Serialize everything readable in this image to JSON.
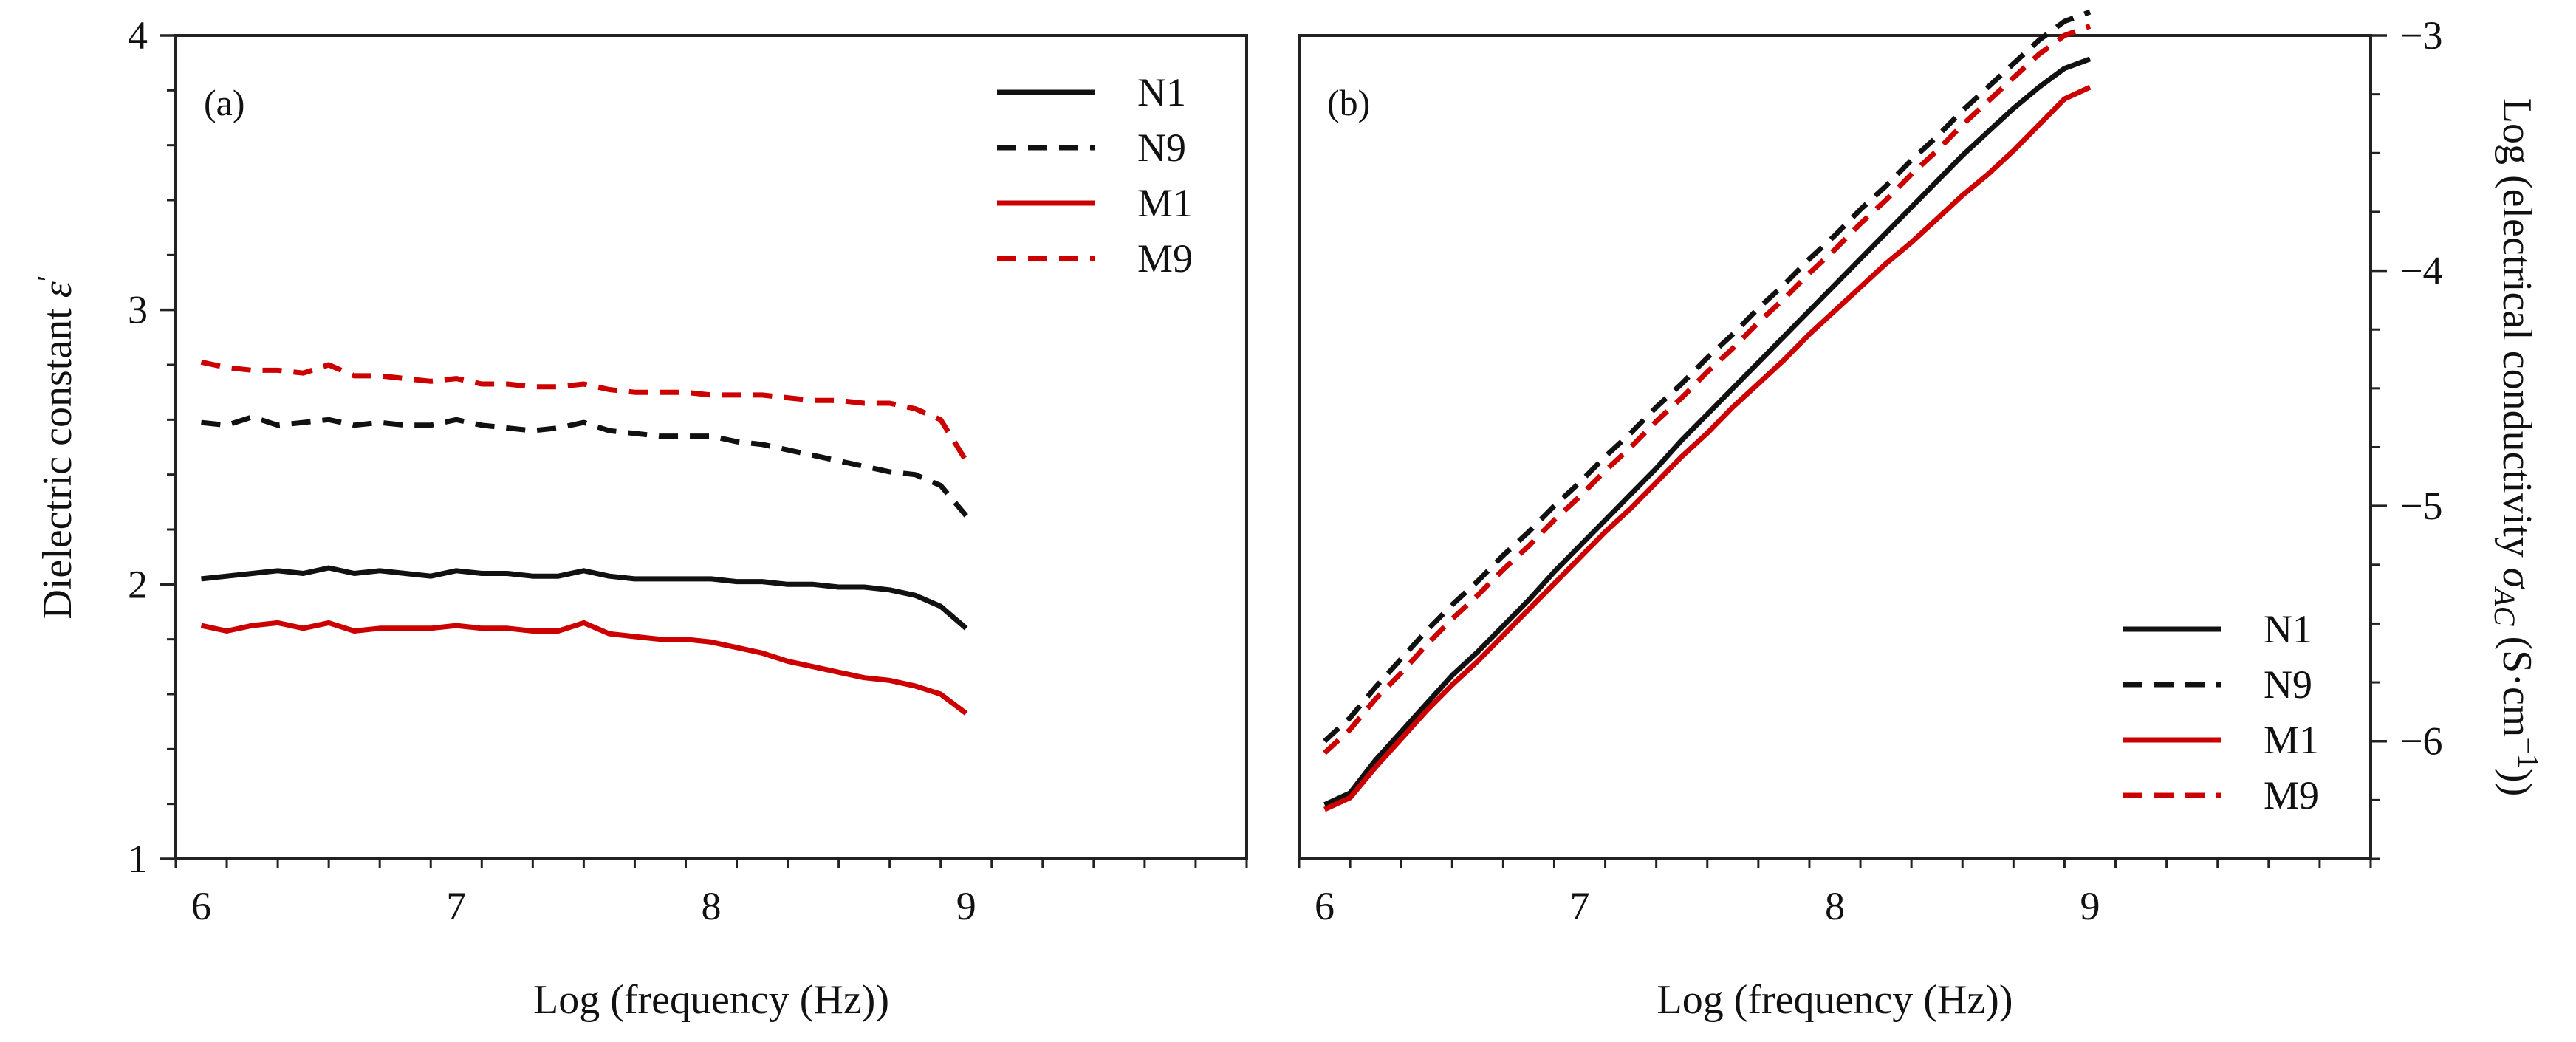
{
  "colors": {
    "black": "#111111",
    "red": "#cc0000"
  },
  "chart_data": [
    {
      "type": "line",
      "panel": "(a)",
      "xlabel": "Log (frequency (Hz))",
      "ylabel": "Dielectric constant",
      "ylabel_symbol": "ε",
      "ylabel_prime": "′",
      "xlim": [
        5.9,
        10.1
      ],
      "ylim": [
        1,
        4
      ],
      "xticks": [
        6,
        7,
        8,
        9
      ],
      "xticklabels": [
        "6",
        "7",
        "8",
        "9"
      ],
      "yticks": [
        1,
        2,
        3,
        4
      ],
      "yticklabels": [
        "1",
        "2",
        "3",
        "4"
      ],
      "legend_position": "top-right",
      "x": [
        6.0,
        6.1,
        6.2,
        6.3,
        6.4,
        6.5,
        6.6,
        6.7,
        6.8,
        6.9,
        7.0,
        7.1,
        7.2,
        7.3,
        7.4,
        7.5,
        7.6,
        7.7,
        7.8,
        7.9,
        8.0,
        8.1,
        8.2,
        8.3,
        8.4,
        8.5,
        8.6,
        8.7,
        8.8,
        8.9,
        9.0
      ],
      "series": [
        {
          "name": "N1",
          "color": "black",
          "dash": "solid",
          "values": [
            2.02,
            2.03,
            2.04,
            2.05,
            2.04,
            2.06,
            2.04,
            2.05,
            2.04,
            2.03,
            2.05,
            2.04,
            2.04,
            2.03,
            2.03,
            2.05,
            2.03,
            2.02,
            2.02,
            2.02,
            2.02,
            2.01,
            2.01,
            2.0,
            2.0,
            1.99,
            1.99,
            1.98,
            1.96,
            1.92,
            1.84
          ]
        },
        {
          "name": "N9",
          "color": "black",
          "dash": "dashed",
          "values": [
            2.59,
            2.58,
            2.61,
            2.58,
            2.59,
            2.6,
            2.58,
            2.59,
            2.58,
            2.58,
            2.6,
            2.58,
            2.57,
            2.56,
            2.57,
            2.59,
            2.56,
            2.55,
            2.54,
            2.54,
            2.54,
            2.52,
            2.51,
            2.49,
            2.47,
            2.45,
            2.43,
            2.41,
            2.4,
            2.36,
            2.25
          ]
        },
        {
          "name": "M1",
          "color": "red",
          "dash": "solid",
          "values": [
            1.85,
            1.83,
            1.85,
            1.86,
            1.84,
            1.86,
            1.83,
            1.84,
            1.84,
            1.84,
            1.85,
            1.84,
            1.84,
            1.83,
            1.83,
            1.86,
            1.82,
            1.81,
            1.8,
            1.8,
            1.79,
            1.77,
            1.75,
            1.72,
            1.7,
            1.68,
            1.66,
            1.65,
            1.63,
            1.6,
            1.53
          ]
        },
        {
          "name": "M9",
          "color": "red",
          "dash": "dashed",
          "values": [
            2.81,
            2.79,
            2.78,
            2.78,
            2.77,
            2.8,
            2.76,
            2.76,
            2.75,
            2.74,
            2.75,
            2.73,
            2.73,
            2.72,
            2.72,
            2.73,
            2.71,
            2.7,
            2.7,
            2.7,
            2.69,
            2.69,
            2.69,
            2.68,
            2.67,
            2.67,
            2.66,
            2.66,
            2.64,
            2.6,
            2.45
          ]
        }
      ]
    },
    {
      "type": "line",
      "panel": "(b)",
      "xlabel": "Log (frequency (Hz))",
      "ylabel_prefix": "Log (electrical conductivity ",
      "ylabel_symbol": "σ",
      "ylabel_subscript": "AC",
      "ylabel_suffix": " (S·cm",
      "ylabel_superscript": "−1",
      "ylabel_close": "))",
      "xlim": [
        5.9,
        10.1
      ],
      "ylim": [
        -6.5,
        -3
      ],
      "xticks": [
        6,
        7,
        8,
        9
      ],
      "xticklabels": [
        "6",
        "7",
        "8",
        "9"
      ],
      "yticks": [
        -6,
        -5,
        -4,
        -3
      ],
      "yticklabels": [
        "−6",
        "−5",
        "−4",
        "−3"
      ],
      "legend_position": "bottom-right",
      "x": [
        6.0,
        6.1,
        6.2,
        6.3,
        6.4,
        6.5,
        6.6,
        6.7,
        6.8,
        6.9,
        7.0,
        7.1,
        7.2,
        7.3,
        7.4,
        7.5,
        7.6,
        7.7,
        7.8,
        7.9,
        8.0,
        8.1,
        8.2,
        8.3,
        8.4,
        8.5,
        8.6,
        8.7,
        8.8,
        8.9,
        9.0
      ],
      "series": [
        {
          "name": "N1",
          "color": "black",
          "dash": "solid",
          "values": [
            -6.27,
            -6.22,
            -6.08,
            -5.96,
            -5.84,
            -5.72,
            -5.62,
            -5.51,
            -5.4,
            -5.28,
            -5.17,
            -5.06,
            -4.95,
            -4.84,
            -4.72,
            -4.61,
            -4.5,
            -4.39,
            -4.28,
            -4.17,
            -4.06,
            -3.95,
            -3.84,
            -3.73,
            -3.62,
            -3.51,
            -3.41,
            -3.31,
            -3.22,
            -3.14,
            -3.1
          ]
        },
        {
          "name": "N9",
          "color": "black",
          "dash": "dashed",
          "values": [
            -6.0,
            -5.9,
            -5.77,
            -5.65,
            -5.53,
            -5.42,
            -5.32,
            -5.21,
            -5.11,
            -5.0,
            -4.9,
            -4.79,
            -4.69,
            -4.58,
            -4.48,
            -4.37,
            -4.27,
            -4.16,
            -4.06,
            -3.95,
            -3.85,
            -3.74,
            -3.64,
            -3.53,
            -3.43,
            -3.32,
            -3.22,
            -3.12,
            -3.02,
            -2.94,
            -2.9
          ]
        },
        {
          "name": "M1",
          "color": "red",
          "dash": "solid",
          "values": [
            -6.29,
            -6.24,
            -6.11,
            -5.99,
            -5.87,
            -5.76,
            -5.66,
            -5.55,
            -5.44,
            -5.33,
            -5.22,
            -5.11,
            -5.01,
            -4.9,
            -4.79,
            -4.69,
            -4.58,
            -4.48,
            -4.38,
            -4.27,
            -4.17,
            -4.07,
            -3.97,
            -3.88,
            -3.78,
            -3.68,
            -3.59,
            -3.49,
            -3.38,
            -3.27,
            -3.22
          ]
        },
        {
          "name": "M9",
          "color": "red",
          "dash": "dashed",
          "values": [
            -6.05,
            -5.95,
            -5.82,
            -5.71,
            -5.59,
            -5.48,
            -5.38,
            -5.27,
            -5.17,
            -5.06,
            -4.96,
            -4.85,
            -4.75,
            -4.64,
            -4.54,
            -4.43,
            -4.33,
            -4.22,
            -4.12,
            -4.01,
            -3.91,
            -3.8,
            -3.7,
            -3.59,
            -3.49,
            -3.38,
            -3.28,
            -3.18,
            -3.08,
            -3.0,
            -2.96
          ]
        }
      ]
    }
  ]
}
